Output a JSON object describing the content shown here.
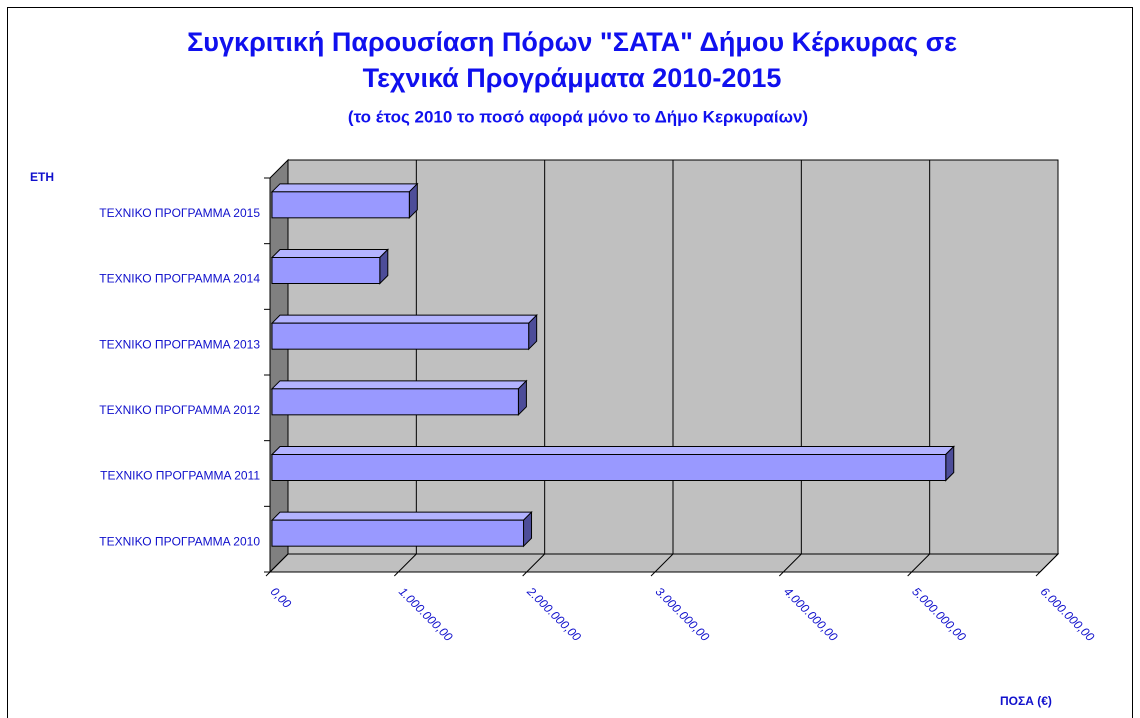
{
  "chart_data": {
    "type": "bar3d_horizontal",
    "title": [
      "Συγκριτική Παρουσίαση Πόρων \"ΣΑΤΑ\" Δήμου Κέρκυρας σε",
      "Τεχνικά Προγράμματα 2010-2015"
    ],
    "subtitle": "(το έτος 2010 το ποσό αφορά μόνο το Δήμο Κερκυραίων)",
    "y_label": "ΕΤΗ",
    "x_label": "ΠΟΣΑ (€)",
    "categories": [
      "ΤΕΧΝΙΚΟ ΠΡΟΓΡΑΜΜΑ 2010",
      "ΤΕΧΝΙΚΟ ΠΡΟΓΡΑΜΜΑ 2011",
      "ΤΕΧΝΙΚΟ ΠΡΟΓΡΑΜΜΑ 2012",
      "ΤΕΧΝΙΚΟ ΠΡΟΓΡΑΜΜΑ 2013",
      "ΤΕΧΝΙΚΟ ΠΡΟΓΡΑΜΜΑ 2014",
      "ΤΕΧΝΙΚΟ ΠΡΟΓΡΑΜΜΑ 2015"
    ],
    "values": [
      1960000,
      5250000,
      1920000,
      2000000,
      840000,
      1070000
    ],
    "color": "#9999ff",
    "xlim": [
      0,
      6000000
    ],
    "xticks": [
      {
        "value": 0,
        "label": "0,00"
      },
      {
        "value": 1000000,
        "label": "1.000.000,00"
      },
      {
        "value": 2000000,
        "label": "2.000.000,00"
      },
      {
        "value": 3000000,
        "label": "3.000.000,00"
      },
      {
        "value": 4000000,
        "label": "4.000.000,00"
      },
      {
        "value": 5000000,
        "label": "5.000.000,00"
      },
      {
        "value": 6000000,
        "label": "6.000.000,00"
      }
    ],
    "grid": true
  }
}
